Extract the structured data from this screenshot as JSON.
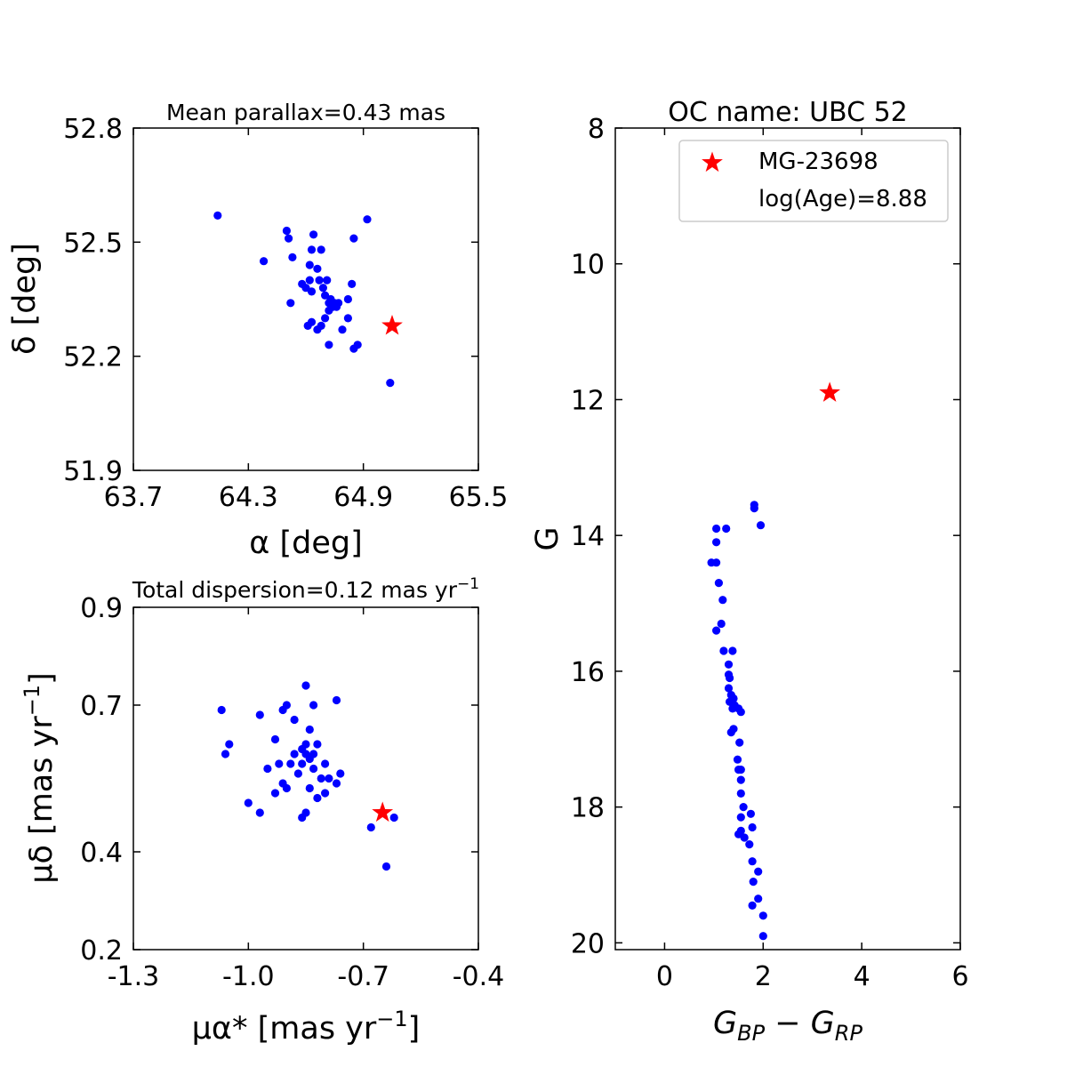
{
  "chart_data": [
    {
      "type": "scatter",
      "title": "Mean parallax=0.43 mas",
      "xlabel": "α [deg]",
      "ylabel": "δ [deg]",
      "xlim": [
        63.7,
        65.5
      ],
      "ylim": [
        51.9,
        52.8
      ],
      "xticks": [
        "63.7",
        "64.3",
        "64.9",
        "65.5"
      ],
      "yticks": [
        "51.9",
        "52.2",
        "52.5",
        "52.8"
      ],
      "members": [
        [
          64.14,
          52.57
        ],
        [
          64.38,
          52.45
        ],
        [
          64.5,
          52.53
        ],
        [
          64.51,
          52.51
        ],
        [
          64.53,
          52.46
        ],
        [
          64.52,
          52.34
        ],
        [
          64.58,
          52.39
        ],
        [
          64.6,
          52.38
        ],
        [
          64.62,
          52.4
        ],
        [
          64.63,
          52.37
        ],
        [
          64.62,
          52.44
        ],
        [
          64.63,
          52.48
        ],
        [
          64.64,
          52.52
        ],
        [
          64.66,
          52.43
        ],
        [
          64.67,
          52.4
        ],
        [
          64.68,
          52.48
        ],
        [
          64.69,
          52.38
        ],
        [
          64.7,
          52.36
        ],
        [
          64.71,
          52.4
        ],
        [
          64.72,
          52.34
        ],
        [
          64.73,
          52.35
        ],
        [
          64.74,
          52.33
        ],
        [
          64.75,
          52.34
        ],
        [
          64.76,
          52.33
        ],
        [
          64.77,
          52.34
        ],
        [
          64.72,
          52.32
        ],
        [
          64.7,
          52.3
        ],
        [
          64.63,
          52.29
        ],
        [
          64.61,
          52.28
        ],
        [
          64.66,
          52.27
        ],
        [
          64.68,
          52.28
        ],
        [
          64.72,
          52.23
        ],
        [
          64.79,
          52.27
        ],
        [
          64.82,
          52.3
        ],
        [
          64.82,
          52.35
        ],
        [
          64.84,
          52.39
        ],
        [
          64.85,
          52.22
        ],
        [
          64.87,
          52.23
        ],
        [
          64.85,
          52.51
        ],
        [
          64.92,
          52.56
        ],
        [
          65.04,
          52.13
        ]
      ],
      "target": [
        65.05,
        52.28
      ]
    },
    {
      "type": "scatter",
      "title": "Total dispersion=0.12 mas yr",
      "title_sup": "−1",
      "xlabel": "μα* [mas yr",
      "xlabel_sup": "−1",
      "xlabel_tail": "]",
      "ylabel": "μδ [mas yr",
      "ylabel_sup": "−1",
      "ylabel_tail": "]",
      "xlim": [
        -1.3,
        -0.4
      ],
      "ylim": [
        0.2,
        0.9
      ],
      "xticks": [
        "-1.3",
        "-1.0",
        "-0.7",
        "-0.4"
      ],
      "yticks": [
        "0.2",
        "0.4",
        "0.7",
        "0.9"
      ],
      "members": [
        [
          -1.07,
          0.69
        ],
        [
          -1.06,
          0.6
        ],
        [
          -1.05,
          0.62
        ],
        [
          -0.97,
          0.68
        ],
        [
          -0.93,
          0.63
        ],
        [
          -0.91,
          0.69
        ],
        [
          -0.9,
          0.7
        ],
        [
          -0.92,
          0.58
        ],
        [
          -0.95,
          0.57
        ],
        [
          -0.93,
          0.52
        ],
        [
          -0.91,
          0.54
        ],
        [
          -0.9,
          0.53
        ],
        [
          -0.89,
          0.58
        ],
        [
          -0.88,
          0.67
        ],
        [
          -0.87,
          0.56
        ],
        [
          -0.86,
          0.58
        ],
        [
          -0.88,
          0.6
        ],
        [
          -0.86,
          0.61
        ],
        [
          -0.85,
          0.6
        ],
        [
          -0.84,
          0.59
        ],
        [
          -0.83,
          0.6
        ],
        [
          -0.85,
          0.62
        ],
        [
          -0.84,
          0.65
        ],
        [
          -0.82,
          0.62
        ],
        [
          -0.83,
          0.7
        ],
        [
          -0.83,
          0.57
        ],
        [
          -0.81,
          0.55
        ],
        [
          -0.8,
          0.52
        ],
        [
          -0.79,
          0.55
        ],
        [
          -0.8,
          0.58
        ],
        [
          -0.82,
          0.51
        ],
        [
          -0.84,
          0.53
        ],
        [
          -0.85,
          0.48
        ],
        [
          -0.86,
          0.47
        ],
        [
          -0.77,
          0.54
        ],
        [
          -0.76,
          0.56
        ],
        [
          -0.77,
          0.71
        ],
        [
          -0.85,
          0.74
        ],
        [
          -0.97,
          0.48
        ],
        [
          -1.0,
          0.5
        ],
        [
          -0.68,
          0.45
        ],
        [
          -0.62,
          0.47
        ],
        [
          -0.64,
          0.37
        ]
      ],
      "target": [
        -0.65,
        0.48
      ]
    },
    {
      "type": "scatter",
      "title": "OC name: UBC 52",
      "xlabel": "G",
      "xlabel_sub1": "BP",
      "xlabel_mid": " − G",
      "xlabel_sub2": "RP",
      "ylabel": "G",
      "xlim": [
        -1,
        6
      ],
      "ylim": [
        20.1,
        8
      ],
      "y_inverted": true,
      "xticks": [
        "0",
        "2",
        "4",
        "6"
      ],
      "yticks": [
        "8",
        "10",
        "12",
        "14",
        "16",
        "18",
        "20"
      ],
      "legend": {
        "loc": "upper-right",
        "label": "MG-23698",
        "extra": "log(Age)=8.88"
      },
      "members": [
        [
          1.05,
          13.9
        ],
        [
          1.25,
          13.9
        ],
        [
          1.05,
          14.1
        ],
        [
          0.95,
          14.4
        ],
        [
          1.05,
          14.4
        ],
        [
          1.1,
          14.7
        ],
        [
          1.18,
          14.95
        ],
        [
          1.15,
          15.3
        ],
        [
          1.05,
          15.4
        ],
        [
          1.2,
          15.7
        ],
        [
          1.38,
          15.7
        ],
        [
          1.3,
          15.9
        ],
        [
          1.3,
          16.05
        ],
        [
          1.32,
          16.1
        ],
        [
          1.3,
          16.25
        ],
        [
          1.35,
          16.35
        ],
        [
          1.4,
          16.4
        ],
        [
          1.32,
          16.45
        ],
        [
          1.42,
          16.5
        ],
        [
          1.38,
          16.55
        ],
        [
          1.5,
          16.55
        ],
        [
          1.55,
          16.6
        ],
        [
          1.4,
          16.85
        ],
        [
          1.35,
          16.9
        ],
        [
          1.52,
          17.05
        ],
        [
          1.48,
          17.3
        ],
        [
          1.55,
          17.45
        ],
        [
          1.5,
          17.45
        ],
        [
          1.55,
          17.6
        ],
        [
          1.55,
          17.8
        ],
        [
          1.6,
          18.0
        ],
        [
          1.55,
          18.15
        ],
        [
          1.75,
          18.1
        ],
        [
          1.55,
          18.35
        ],
        [
          1.5,
          18.4
        ],
        [
          1.62,
          18.45
        ],
        [
          1.78,
          18.3
        ],
        [
          1.72,
          18.55
        ],
        [
          1.78,
          18.8
        ],
        [
          1.9,
          18.95
        ],
        [
          1.8,
          19.1
        ],
        [
          1.9,
          19.35
        ],
        [
          1.78,
          19.45
        ],
        [
          2.0,
          19.6
        ],
        [
          2.0,
          19.9
        ],
        [
          1.82,
          13.55
        ],
        [
          1.82,
          13.6
        ],
        [
          1.95,
          13.85
        ]
      ],
      "target": [
        3.35,
        11.9
      ]
    }
  ]
}
